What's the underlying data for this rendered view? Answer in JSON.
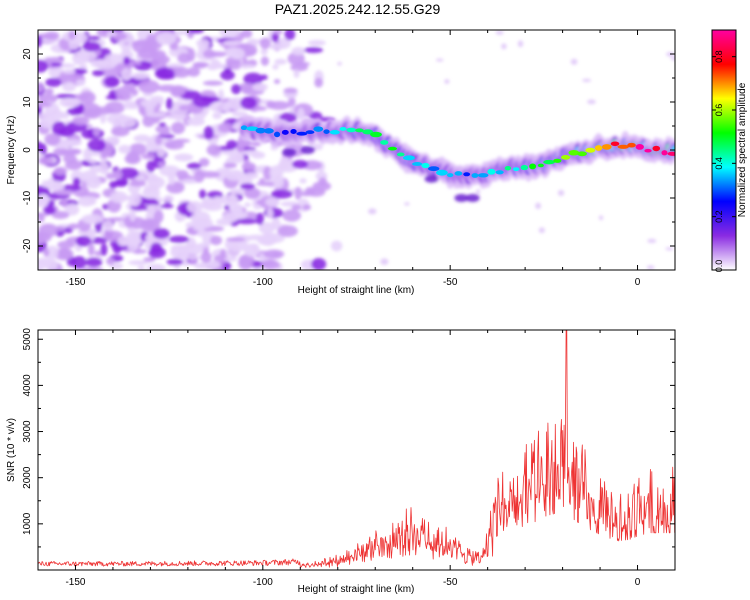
{
  "figure_title": "PAZ1.2025.242.12.55.G29",
  "chart_data": [
    {
      "type": "heatmap",
      "title": "PAZ1.2025.242.12.55.G29",
      "xlabel": "Height of straight line (km)",
      "ylabel": "Frequency (Hz)",
      "xlim": [
        -160,
        10
      ],
      "ylim": [
        -25,
        25
      ],
      "xticks": [
        -150,
        -100,
        -50,
        0
      ],
      "yticks": [
        -20,
        -10,
        0,
        10,
        20
      ],
      "colorbar": {
        "label": "Normalized spectral amplitude",
        "range": [
          0,
          0.9
        ],
        "ticks": [
          "0.0",
          "0.2",
          "0.4",
          "0.6",
          "0.8"
        ],
        "colormap": [
          "#ffffff",
          "#8a2be2",
          "#0000ff",
          "#00ffff",
          "#00ff00",
          "#ffff00",
          "#ff0000",
          "#ff00a0"
        ]
      },
      "ridge": {
        "name": "signal trace",
        "x": [
          -105,
          -100,
          -95,
          -90,
          -85,
          -80,
          -75,
          -70,
          -65,
          -60,
          -55,
          -50,
          -45,
          -40,
          -35,
          -30,
          -25,
          -20,
          -15,
          -10,
          -5,
          0,
          5,
          10
        ],
        "y": [
          4.5,
          4,
          3.5,
          3.5,
          4,
          4,
          4,
          3,
          0,
          -2.5,
          -3.5,
          -5,
          -5.5,
          -5,
          -4,
          -3.5,
          -3,
          -1.5,
          -0.5,
          0.5,
          1,
          0.5,
          0,
          -0.5
        ],
        "amplitude": [
          0.35,
          0.3,
          0.25,
          0.25,
          0.3,
          0.35,
          0.45,
          0.5,
          0.45,
          0.4,
          0.35,
          0.35,
          0.3,
          0.35,
          0.4,
          0.45,
          0.5,
          0.55,
          0.6,
          0.7,
          0.75,
          0.8,
          0.8,
          0.8
        ]
      },
      "noise": {
        "x_range": [
          -160,
          -80
        ],
        "amplitude": 0.15
      }
    },
    {
      "type": "line",
      "xlabel": "Height of straight line (km)",
      "ylabel": "SNR (10 * v/v)",
      "xlim": [
        -160,
        10
      ],
      "ylim": [
        0,
        5200
      ],
      "xticks": [
        -150,
        -100,
        -50,
        0
      ],
      "yticks": [
        1000,
        2000,
        3000,
        4000,
        5000
      ],
      "series": [
        {
          "name": "SNR",
          "color": "#ee3333",
          "envelope": {
            "x": [
              -160,
              -140,
              -120,
              -100,
              -90,
              -85,
              -80,
              -75,
              -70,
              -65,
              -60,
              -55,
              -50,
              -45,
              -42,
              -40,
              -38,
              -35,
              -32,
              -30,
              -28,
              -25,
              -22,
              -20,
              -18,
              -15,
              -12,
              -10,
              -8,
              -5,
              -2,
              0,
              3,
              6,
              10
            ],
            "y": [
              150,
              150,
              160,
              170,
              200,
              250,
              350,
              600,
              900,
              1200,
              1400,
              1200,
              900,
              500,
              400,
              900,
              2000,
              2600,
              2500,
              2800,
              2900,
              3300,
              3500,
              4000,
              3300,
              2800,
              2400,
              2200,
              2000,
              1800,
              1900,
              2100,
              2300,
              2300,
              2300
            ]
          },
          "peak": {
            "x": -19,
            "y": 5200
          }
        }
      ]
    }
  ]
}
